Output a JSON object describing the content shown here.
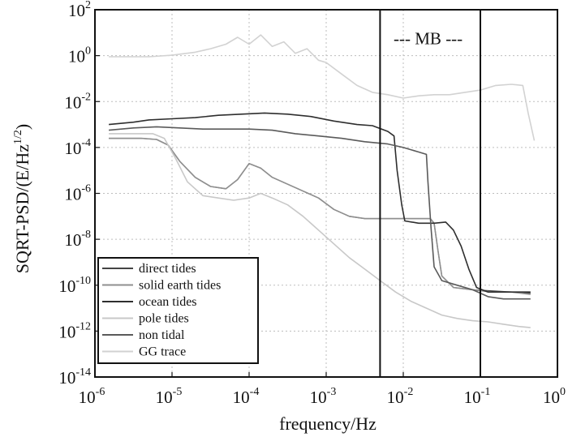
{
  "chart_data": {
    "type": "line",
    "scale": "log-log",
    "xlabel": "frequency/Hz",
    "ylabel_base": "SQRT-PSD/(E/Hz",
    "ylabel_exp": "1/2",
    "ylabel_close": ")",
    "xlim": [
      1e-06,
      1
    ],
    "ylim": [
      1e-14,
      100
    ],
    "grid": true,
    "x_ticks": [
      {
        "base": "10",
        "exp": "-6",
        "value": -6
      },
      {
        "base": "10",
        "exp": "-5",
        "value": -5
      },
      {
        "base": "10",
        "exp": "-4",
        "value": -4
      },
      {
        "base": "10",
        "exp": "-3",
        "value": -3
      },
      {
        "base": "10",
        "exp": "-2",
        "value": -2
      },
      {
        "base": "10",
        "exp": "-1",
        "value": -1
      },
      {
        "base": "10",
        "exp": "0",
        "value": 0
      }
    ],
    "y_ticks": [
      {
        "base": "10",
        "exp": "2",
        "value": 2
      },
      {
        "base": "10",
        "exp": "0",
        "value": 0
      },
      {
        "base": "10",
        "exp": "-2",
        "value": -2
      },
      {
        "base": "10",
        "exp": "-4",
        "value": -4
      },
      {
        "base": "10",
        "exp": "-6",
        "value": -6
      },
      {
        "base": "10",
        "exp": "-8",
        "value": -8
      },
      {
        "base": "10",
        "exp": "-10",
        "value": -10
      },
      {
        "base": "10",
        "exp": "-12",
        "value": -12
      },
      {
        "base": "10",
        "exp": "-14",
        "value": -14
      }
    ],
    "vlines": [
      0.005,
      0.1
    ],
    "annotation": {
      "text": "--- MB ---",
      "x": 0.021,
      "y": 0.75
    },
    "legend_location": "bottom-left",
    "series": [
      {
        "name": "GG trace",
        "color": "#d2d2d2",
        "width": 1.6,
        "points": [
          [
            -5.82,
            -0.05
          ],
          [
            -5.3,
            -0.05
          ],
          [
            -5.0,
            0.02
          ],
          [
            -4.7,
            0.15
          ],
          [
            -4.5,
            0.3
          ],
          [
            -4.3,
            0.5
          ],
          [
            -4.15,
            0.8
          ],
          [
            -4.0,
            0.5
          ],
          [
            -3.85,
            0.9
          ],
          [
            -3.7,
            0.4
          ],
          [
            -3.55,
            0.6
          ],
          [
            -3.4,
            0.1
          ],
          [
            -3.25,
            0.3
          ],
          [
            -3.1,
            -0.2
          ],
          [
            -3.0,
            -0.3
          ],
          [
            -2.8,
            -0.8
          ],
          [
            -2.6,
            -1.3
          ],
          [
            -2.4,
            -1.6
          ],
          [
            -2.2,
            -1.7
          ],
          [
            -2.0,
            -1.85
          ],
          [
            -1.8,
            -1.75
          ],
          [
            -1.6,
            -1.7
          ],
          [
            -1.4,
            -1.7
          ],
          [
            -1.2,
            -1.6
          ],
          [
            -1.0,
            -1.5
          ],
          [
            -0.8,
            -1.3
          ],
          [
            -0.6,
            -1.25
          ],
          [
            -0.45,
            -1.3
          ],
          [
            -0.38,
            -2.5
          ],
          [
            -0.3,
            -3.7
          ]
        ]
      },
      {
        "name": "direct tides",
        "color": "#444444",
        "width": 1.3,
        "points": [
          [
            -5.82,
            -3.6
          ],
          [
            -5.4,
            -3.6
          ],
          [
            -5.2,
            -3.65
          ],
          [
            -5.05,
            -3.9
          ],
          [
            -4.9,
            -4.6
          ],
          [
            -4.7,
            -5.3
          ],
          [
            -4.5,
            -5.7
          ],
          [
            -4.3,
            -5.8
          ],
          [
            -4.15,
            -5.4
          ],
          [
            -4.0,
            -4.7
          ],
          [
            -3.85,
            -4.9
          ],
          [
            -3.7,
            -5.3
          ],
          [
            -3.5,
            -5.6
          ],
          [
            -3.3,
            -5.9
          ],
          [
            -3.1,
            -6.2
          ],
          [
            -2.9,
            -6.7
          ],
          [
            -2.7,
            -7.0
          ],
          [
            -2.5,
            -7.1
          ],
          [
            -2.35,
            -7.1
          ],
          [
            -2.2,
            -7.1
          ],
          [
            -2.0,
            -7.1
          ],
          [
            -1.8,
            -7.1
          ],
          [
            -1.65,
            -7.1
          ],
          [
            -1.6,
            -7.3
          ],
          [
            -1.55,
            -8.5
          ],
          [
            -1.5,
            -9.6
          ],
          [
            -1.35,
            -10.1
          ],
          [
            -1.1,
            -10.2
          ],
          [
            -0.85,
            -10.25
          ],
          [
            -0.6,
            -10.3
          ],
          [
            -0.35,
            -10.35
          ]
        ]
      },
      {
        "name": "solid earth tides",
        "color": "#8f8f8f",
        "width": 1.6,
        "points": [
          [
            -5.82,
            -3.6
          ],
          [
            -5.4,
            -3.6
          ],
          [
            -5.2,
            -3.65
          ],
          [
            -5.05,
            -3.9
          ],
          [
            -4.9,
            -4.6
          ],
          [
            -4.7,
            -5.3
          ],
          [
            -4.5,
            -5.7
          ],
          [
            -4.3,
            -5.8
          ],
          [
            -4.15,
            -5.4
          ],
          [
            -4.0,
            -4.7
          ],
          [
            -3.85,
            -4.9
          ],
          [
            -3.7,
            -5.3
          ],
          [
            -3.5,
            -5.6
          ],
          [
            -3.3,
            -5.9
          ],
          [
            -3.1,
            -6.2
          ],
          [
            -2.9,
            -6.7
          ],
          [
            -2.7,
            -7.0
          ],
          [
            -2.5,
            -7.1
          ],
          [
            -2.35,
            -7.1
          ],
          [
            -2.2,
            -7.1
          ],
          [
            -2.0,
            -7.1
          ],
          [
            -1.8,
            -7.1
          ],
          [
            -1.65,
            -7.1
          ],
          [
            -1.6,
            -7.3
          ],
          [
            -1.55,
            -8.5
          ],
          [
            -1.5,
            -9.6
          ],
          [
            -1.35,
            -10.1
          ],
          [
            -1.1,
            -10.2
          ],
          [
            -0.85,
            -10.3
          ],
          [
            -0.6,
            -10.3
          ],
          [
            -0.35,
            -10.4
          ]
        ]
      },
      {
        "name": "ocean tides",
        "color": "#2e2e2e",
        "width": 1.6,
        "points": [
          [
            -5.82,
            -3.0
          ],
          [
            -5.5,
            -2.9
          ],
          [
            -5.3,
            -2.8
          ],
          [
            -5.0,
            -2.75
          ],
          [
            -4.7,
            -2.7
          ],
          [
            -4.4,
            -2.6
          ],
          [
            -4.1,
            -2.55
          ],
          [
            -3.8,
            -2.5
          ],
          [
            -3.5,
            -2.55
          ],
          [
            -3.2,
            -2.65
          ],
          [
            -2.9,
            -2.85
          ],
          [
            -2.6,
            -3.0
          ],
          [
            -2.4,
            -3.05
          ],
          [
            -2.2,
            -3.3
          ],
          [
            -2.12,
            -3.5
          ],
          [
            -2.08,
            -5.0
          ],
          [
            -2.02,
            -6.5
          ],
          [
            -1.98,
            -7.2
          ],
          [
            -1.8,
            -7.3
          ],
          [
            -1.6,
            -7.3
          ],
          [
            -1.45,
            -7.25
          ],
          [
            -1.35,
            -7.6
          ],
          [
            -1.25,
            -8.3
          ],
          [
            -1.15,
            -9.3
          ],
          [
            -1.05,
            -10.1
          ],
          [
            -0.9,
            -10.3
          ],
          [
            -0.7,
            -10.3
          ],
          [
            -0.5,
            -10.3
          ],
          [
            -0.35,
            -10.3
          ]
        ]
      },
      {
        "name": "non tidal",
        "color": "#5a5a5a",
        "width": 1.6,
        "points": [
          [
            -5.82,
            -3.25
          ],
          [
            -5.5,
            -3.15
          ],
          [
            -5.2,
            -3.1
          ],
          [
            -4.9,
            -3.15
          ],
          [
            -4.6,
            -3.2
          ],
          [
            -4.3,
            -3.2
          ],
          [
            -4.0,
            -3.2
          ],
          [
            -3.7,
            -3.25
          ],
          [
            -3.4,
            -3.4
          ],
          [
            -3.1,
            -3.5
          ],
          [
            -2.8,
            -3.6
          ],
          [
            -2.5,
            -3.75
          ],
          [
            -2.2,
            -3.85
          ],
          [
            -2.0,
            -4.0
          ],
          [
            -1.8,
            -4.2
          ],
          [
            -1.7,
            -4.3
          ],
          [
            -1.68,
            -5.5
          ],
          [
            -1.64,
            -7.5
          ],
          [
            -1.6,
            -9.2
          ],
          [
            -1.5,
            -9.8
          ],
          [
            -1.3,
            -10.0
          ],
          [
            -1.1,
            -10.2
          ],
          [
            -0.9,
            -10.5
          ],
          [
            -0.7,
            -10.6
          ],
          [
            -0.5,
            -10.6
          ],
          [
            -0.35,
            -10.6
          ]
        ]
      },
      {
        "name": "pole tides",
        "color": "#c8c8c8",
        "width": 1.6,
        "points": [
          [
            -5.82,
            -3.4
          ],
          [
            -5.5,
            -3.4
          ],
          [
            -5.25,
            -3.4
          ],
          [
            -5.1,
            -3.6
          ],
          [
            -4.95,
            -4.5
          ],
          [
            -4.8,
            -5.5
          ],
          [
            -4.6,
            -6.1
          ],
          [
            -4.4,
            -6.2
          ],
          [
            -4.2,
            -6.3
          ],
          [
            -4.0,
            -6.2
          ],
          [
            -3.85,
            -6.0
          ],
          [
            -3.7,
            -6.2
          ],
          [
            -3.5,
            -6.5
          ],
          [
            -3.3,
            -7.0
          ],
          [
            -3.1,
            -7.6
          ],
          [
            -2.9,
            -8.2
          ],
          [
            -2.7,
            -8.8
          ],
          [
            -2.5,
            -9.3
          ],
          [
            -2.3,
            -9.8
          ],
          [
            -2.1,
            -10.3
          ],
          [
            -1.9,
            -10.7
          ],
          [
            -1.7,
            -11.0
          ],
          [
            -1.5,
            -11.3
          ],
          [
            -1.3,
            -11.45
          ],
          [
            -1.1,
            -11.55
          ],
          [
            -0.9,
            -11.6
          ],
          [
            -0.7,
            -11.7
          ],
          [
            -0.5,
            -11.8
          ],
          [
            -0.35,
            -11.85
          ]
        ]
      }
    ]
  }
}
